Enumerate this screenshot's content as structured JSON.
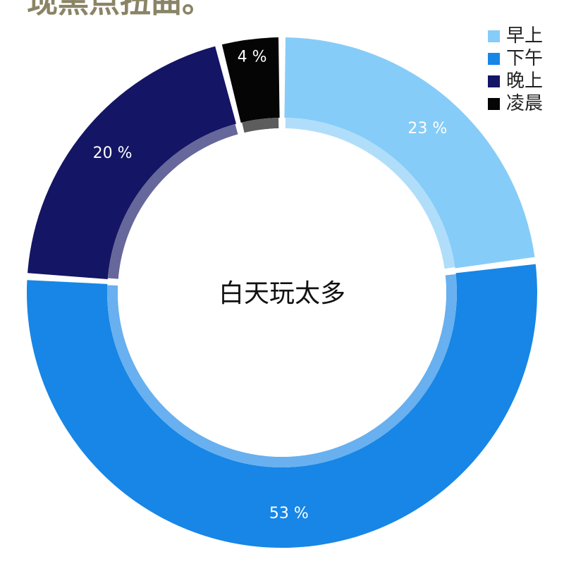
{
  "header": {
    "partial_text": "现黑点扭曲。"
  },
  "chart_data": {
    "type": "pie",
    "categories": [
      "早上",
      "下午",
      "晚上",
      "凌晨"
    ],
    "values": [
      23,
      53,
      20,
      4
    ],
    "value_labels": [
      "23 %",
      "53 %",
      "20 %",
      "4 %"
    ],
    "colors": [
      "#86ccf8",
      "#1786e6",
      "#141564",
      "#050505"
    ],
    "center_text": "白天玩太多",
    "legend_position": "top-right"
  }
}
